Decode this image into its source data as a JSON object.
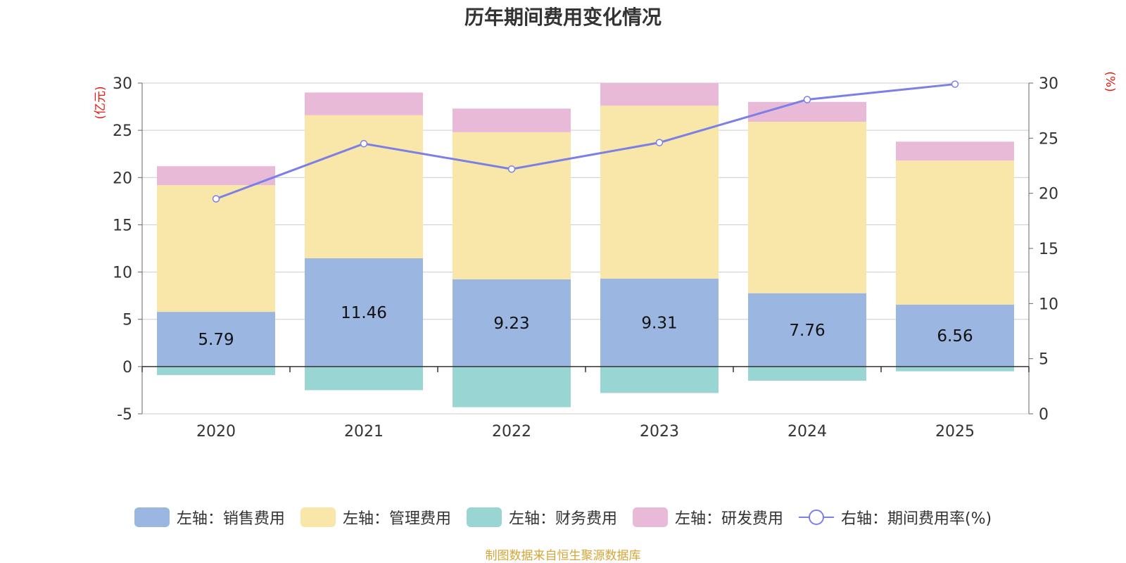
{
  "chart_data": {
    "type": "bar",
    "title": "历年期间费用变化情况",
    "categories": [
      "2020",
      "2021",
      "2022",
      "2023",
      "2024",
      "2025"
    ],
    "left_axis": {
      "unit_label": "(亿元)",
      "ylim": [
        -5,
        30
      ],
      "ticks": [
        -5,
        0,
        5,
        10,
        15,
        20,
        25,
        30
      ]
    },
    "right_axis": {
      "unit_label": "(%)",
      "ylim": [
        0,
        30
      ],
      "ticks": [
        0,
        5,
        10,
        15,
        20,
        25,
        30
      ]
    },
    "series": [
      {
        "name": "左轴：销售费用",
        "type": "bar",
        "stack": "total",
        "axis": "left",
        "color": "#9bb6e1",
        "values": [
          5.79,
          11.46,
          9.23,
          9.31,
          7.76,
          6.56
        ],
        "show_labels": true
      },
      {
        "name": "左轴：管理费用",
        "type": "bar",
        "stack": "total",
        "axis": "left",
        "color": "#f8e7a8",
        "values": [
          13.41,
          15.14,
          15.57,
          18.29,
          18.14,
          15.24
        ],
        "show_labels": false
      },
      {
        "name": "左轴：财务费用",
        "type": "bar",
        "stack": "total",
        "axis": "left",
        "color": "#98d5d3",
        "values": [
          -0.9,
          -2.5,
          -4.3,
          -2.8,
          -1.5,
          -0.5
        ],
        "show_labels": false
      },
      {
        "name": "左轴：研发费用",
        "type": "bar",
        "stack": "total",
        "axis": "left",
        "color": "#e8bad8",
        "values": [
          2.0,
          2.4,
          2.5,
          2.4,
          2.1,
          2.0
        ],
        "show_labels": false
      },
      {
        "name": "右轴：期间费用率(%)",
        "type": "line",
        "axis": "right",
        "color": "#7b7fe6",
        "values": [
          19.5,
          24.5,
          22.2,
          24.6,
          28.5,
          29.9
        ],
        "show_labels": false
      }
    ],
    "legend_position": "bottom"
  },
  "footer": "制图数据来自恒生聚源数据库"
}
